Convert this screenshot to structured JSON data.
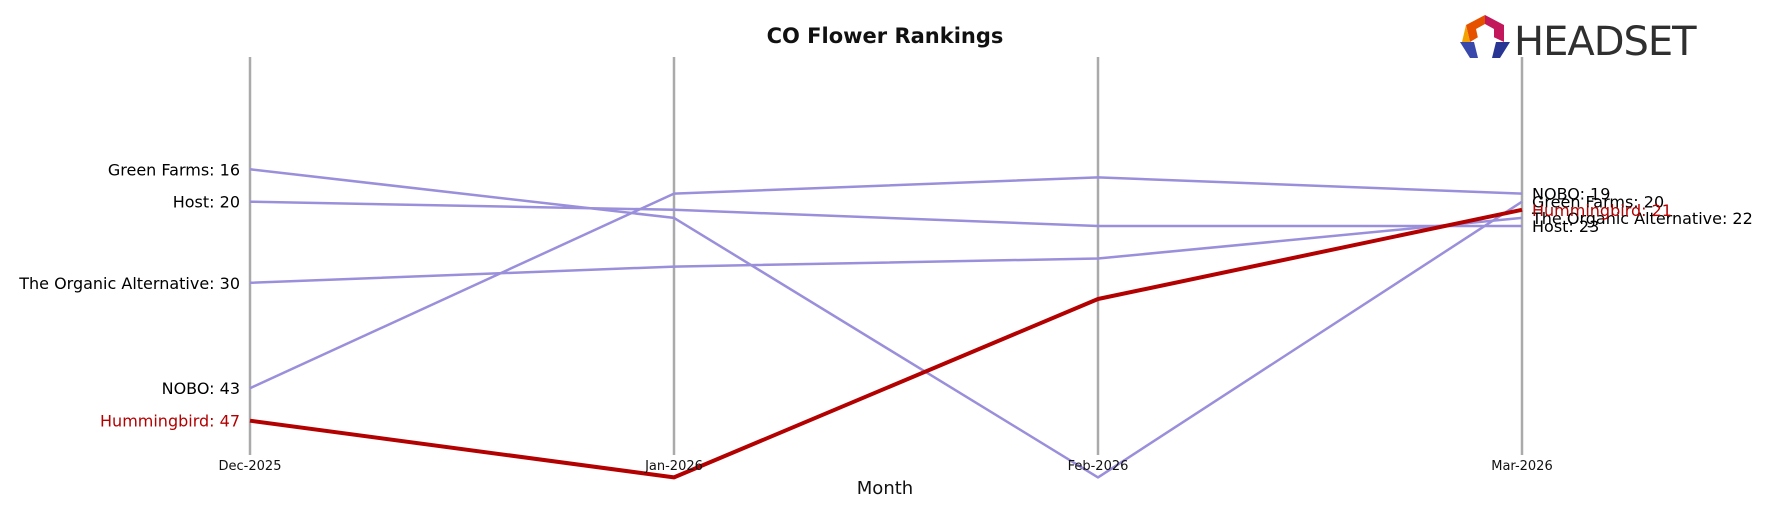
{
  "logo": {
    "text": "HEADSET"
  },
  "colors": {
    "highlight": "#b30000",
    "other": "#9a8fdb",
    "axis": "#aaaaaa"
  },
  "chart_data": {
    "type": "line",
    "title": "CO Flower Rankings",
    "xlabel": "Month",
    "ylabel": "",
    "x": [
      "Dec-2025",
      "Jan-2026",
      "Feb-2026",
      "Mar-2026"
    ],
    "y_inverted": true,
    "ylim": [
      14,
      58
    ],
    "grid": false,
    "series": [
      {
        "name": "Green Farms",
        "values": [
          16,
          22,
          54,
          20
        ],
        "highlight": false,
        "start_label": "Green Farms: 16",
        "end_label": "Green Farms: 20"
      },
      {
        "name": "Host",
        "values": [
          20,
          21,
          23,
          23
        ],
        "highlight": false,
        "start_label": "Host: 20",
        "end_label": "Host: 23"
      },
      {
        "name": "The Organic Alternative",
        "values": [
          30,
          28,
          27,
          22
        ],
        "highlight": false,
        "start_label": "The Organic Alternative: 30",
        "end_label": "The Organic Alternative: 22"
      },
      {
        "name": "NOBO",
        "values": [
          43,
          19,
          17,
          19
        ],
        "highlight": false,
        "start_label": "NOBO: 43",
        "end_label": "NOBO: 19"
      },
      {
        "name": "Hummingbird",
        "values": [
          47,
          54,
          32,
          21
        ],
        "highlight": true,
        "start_label": "Hummingbird: 47",
        "end_label": "Hummingbird: 21"
      }
    ]
  }
}
